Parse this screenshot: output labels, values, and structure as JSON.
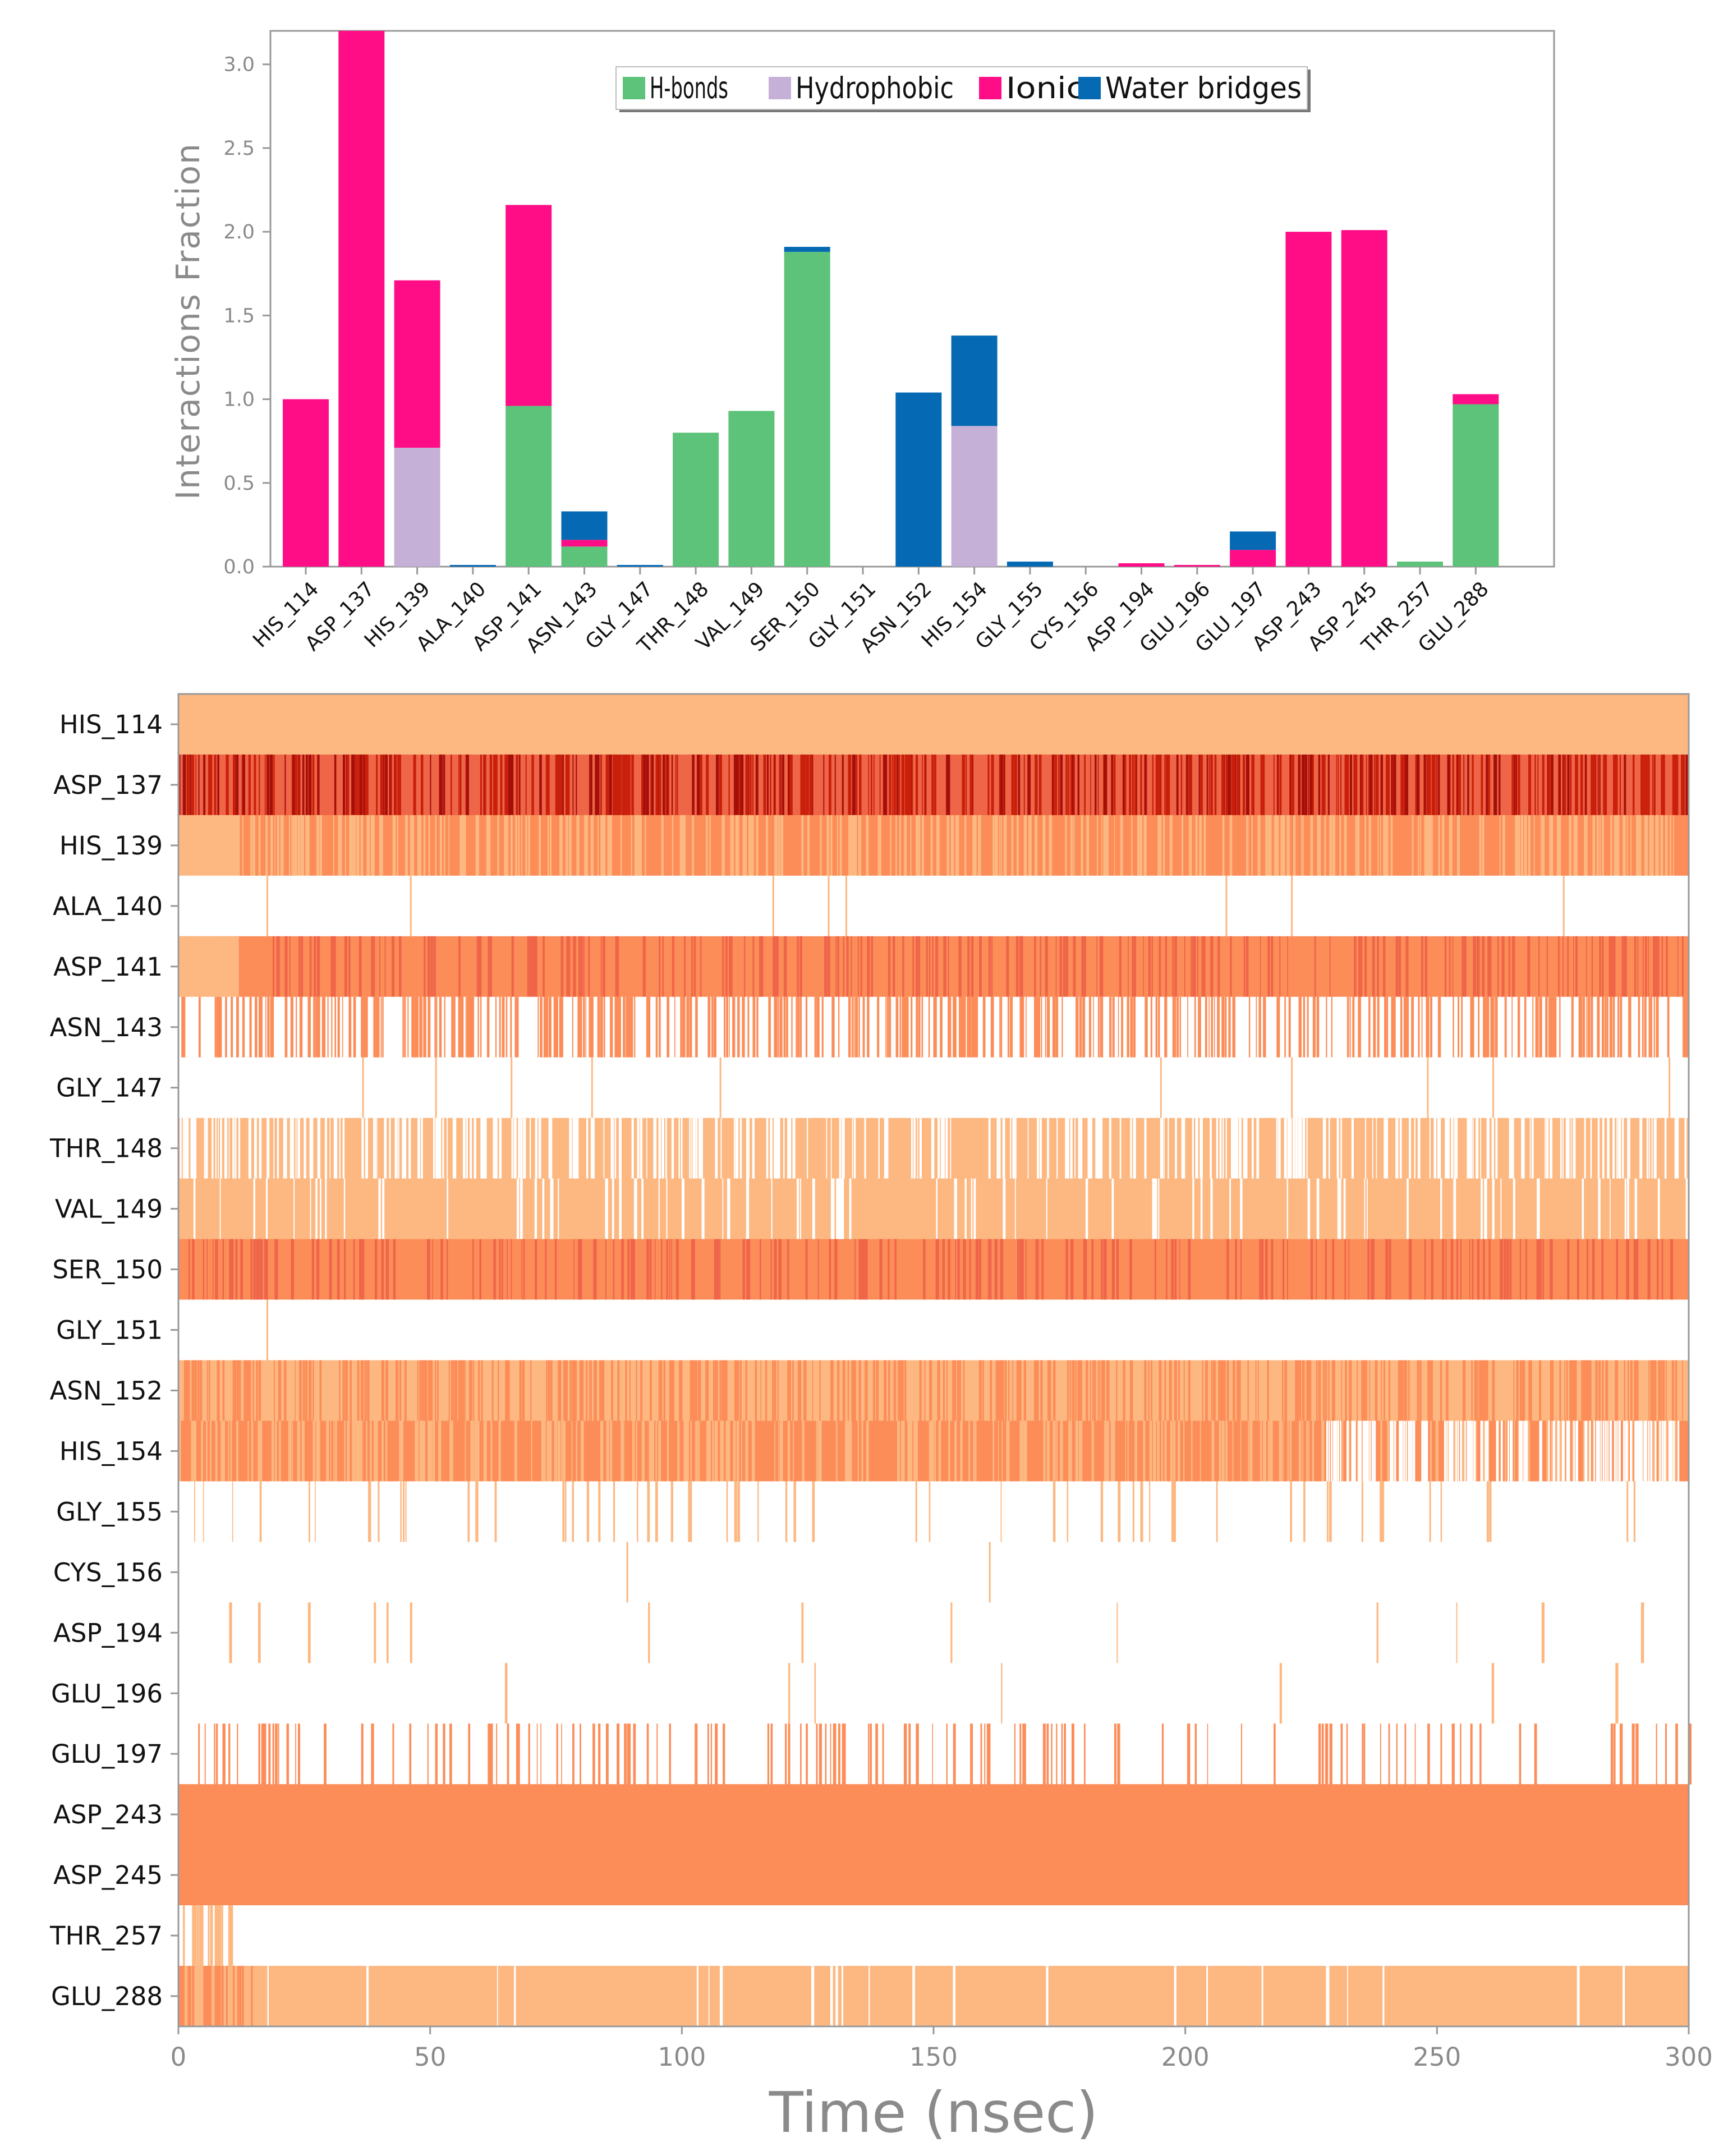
{
  "chart_data": [
    {
      "type": "bar",
      "stacked": true,
      "ylabel": "Interactions Fraction",
      "ylim": [
        0,
        3.2
      ],
      "yticks": [
        "0.0",
        "0.5",
        "1.0",
        "1.5",
        "2.0",
        "2.5",
        "3.0"
      ],
      "ytick_values": [
        0,
        0.5,
        1.0,
        1.5,
        2.0,
        2.5,
        3.0
      ],
      "categories": [
        "HIS_114",
        "ASP_137",
        "HIS_139",
        "ALA_140",
        "ASP_141",
        "ASN_143",
        "GLY_147",
        "THR_148",
        "VAL_149",
        "SER_150",
        "GLY_151",
        "ASN_152",
        "HIS_154",
        "GLY_155",
        "CYS_156",
        "ASP_194",
        "GLU_196",
        "GLU_197",
        "ASP_243",
        "ASP_245",
        "THR_257",
        "GLU_288"
      ],
      "legend": [
        "H-bonds",
        "Hydrophobic",
        "Ionic",
        "Water bridges"
      ],
      "legend_position": "top-center",
      "series": [
        {
          "name": "H-bonds",
          "color": "#5dc27a",
          "values": [
            0,
            0,
            0,
            0,
            0.96,
            0.12,
            0,
            0.8,
            0.93,
            1.88,
            0,
            0,
            0,
            0,
            0,
            0,
            0,
            0,
            0,
            0,
            0.03,
            0.97
          ]
        },
        {
          "name": "Hydrophobic",
          "color": "#c5b0d7",
          "values": [
            0,
            0,
            0.71,
            0,
            0,
            0,
            0,
            0,
            0,
            0,
            0,
            0,
            0.84,
            0,
            0,
            0,
            0,
            0,
            0,
            0,
            0,
            0
          ]
        },
        {
          "name": "Ionic",
          "color": "#ff0d87",
          "values": [
            1.0,
            3.2,
            1.0,
            0,
            1.2,
            0.04,
            0,
            0,
            0,
            0,
            0,
            0,
            0,
            0,
            0,
            0.02,
            0.01,
            0.1,
            2.0,
            2.01,
            0,
            0.06
          ]
        },
        {
          "name": "Water bridges",
          "color": "#0569b3",
          "values": [
            0,
            0,
            0,
            0.01,
            0,
            0.17,
            0.01,
            0,
            0,
            0.03,
            0,
            1.04,
            0.54,
            0.03,
            0,
            0,
            0,
            0.11,
            0,
            0,
            0,
            0
          ]
        }
      ]
    },
    {
      "type": "heatmap",
      "xlabel": "Time (nsec)",
      "xlim": [
        0,
        300
      ],
      "xticks": [
        "0",
        "50",
        "100",
        "150",
        "200",
        "250",
        "300"
      ],
      "xtick_values": [
        0,
        50,
        100,
        150,
        200,
        250,
        300
      ],
      "colors": {
        "light": "#fdb882",
        "medium": "#fc8d59",
        "dark": "#ef6548",
        "darker": "#c9200c",
        "darkest": "#a50f0a",
        "empty": "#ffffff"
      },
      "rows": [
        {
          "label": "HIS_114",
          "base": "light",
          "density": 0.0,
          "variant": "medium",
          "segments": []
        },
        {
          "label": "ASP_137",
          "base": "dark",
          "density": 0.45,
          "variant": "darker",
          "segments": []
        },
        {
          "label": "HIS_139",
          "base": "medium",
          "density": 0.3,
          "variant": "light",
          "segments": [
            [
              0,
              12,
              "light"
            ]
          ]
        },
        {
          "label": "ALA_140",
          "base": "empty",
          "density": 0.0,
          "variant": "light",
          "segments": [],
          "marks": [
            17.5,
            46,
            118,
            129,
            132.5,
            208,
            221,
            275
          ]
        },
        {
          "label": "ASP_141",
          "base": "medium",
          "density": 0.22,
          "variant": "dark",
          "segments": [
            [
              0,
              12,
              "light"
            ]
          ]
        },
        {
          "label": "ASN_143",
          "base": "empty",
          "density": 0.35,
          "variant": "medium",
          "segments": []
        },
        {
          "label": "GLY_147",
          "base": "empty",
          "density": 0.0,
          "variant": "light",
          "segments": [],
          "marks": [
            36.5,
            51,
            66,
            82,
            107.5,
            195,
            221,
            248,
            261,
            296
          ]
        },
        {
          "label": "THR_148",
          "base": "light",
          "density": 0.3,
          "variant": "empty",
          "segments": []
        },
        {
          "label": "VAL_149",
          "base": "light",
          "density": 0.08,
          "variant": "empty",
          "segments": []
        },
        {
          "label": "SER_150",
          "base": "medium",
          "density": 0.18,
          "variant": "dark",
          "segments": []
        },
        {
          "label": "GLY_151",
          "base": "empty",
          "density": 0.0,
          "variant": "light",
          "segments": [],
          "marks": [
            17.5
          ]
        },
        {
          "label": "ASN_152",
          "base": "light",
          "density": 0.35,
          "variant": "medium",
          "segments": []
        },
        {
          "label": "HIS_154",
          "base": "medium",
          "density": 0.28,
          "variant": "light",
          "segments": [
            [
              228,
              300,
              "empty_mix"
            ]
          ]
        },
        {
          "label": "GLY_155",
          "base": "empty",
          "density": 0.05,
          "variant": "light",
          "segments": []
        },
        {
          "label": "CYS_156",
          "base": "empty",
          "density": 0.0,
          "variant": "light",
          "segments": [],
          "marks": [
            89,
            161
          ]
        },
        {
          "label": "ASP_194",
          "base": "empty",
          "density": 0.012,
          "variant": "light",
          "segments": []
        },
        {
          "label": "GLU_196",
          "base": "empty",
          "density": 0.006,
          "variant": "light",
          "segments": []
        },
        {
          "label": "GLU_197",
          "base": "empty",
          "density": 0.12,
          "variant": "medium",
          "segments": []
        },
        {
          "label": "ASP_243",
          "base": "medium",
          "density": 0.0,
          "variant": "medium",
          "segments": []
        },
        {
          "label": "ASP_245",
          "base": "medium",
          "density": 0.0,
          "variant": "medium",
          "segments": []
        },
        {
          "label": "THR_257",
          "base": "empty",
          "density": 0.0,
          "variant": "light",
          "segments": [
            [
              0,
              11,
              "light_mix"
            ]
          ]
        },
        {
          "label": "GLU_288",
          "base": "light",
          "density": 0.02,
          "variant": "empty",
          "segments": [
            [
              0,
              17,
              "medium_mix"
            ]
          ]
        }
      ]
    }
  ]
}
